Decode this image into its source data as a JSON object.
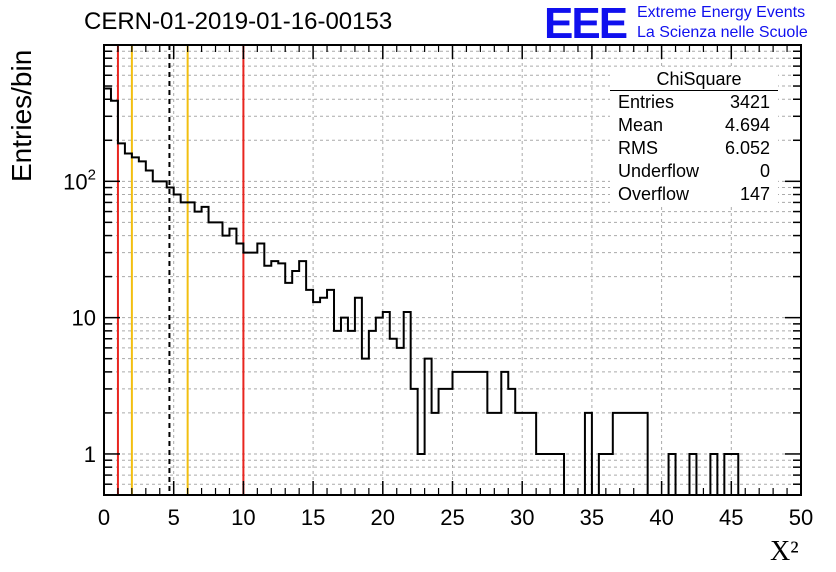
{
  "header": {
    "run_title": "CERN-01-2019-01-16-00153",
    "logo_text": "EEE",
    "logo_line1": "Extreme Energy Events",
    "logo_line2": "La Scienza nelle Scuole",
    "logo_color": "#1010ee"
  },
  "stats_box": {
    "title": "ChiSquare",
    "rows": [
      {
        "label": "Entries",
        "value": "3421"
      },
      {
        "label": "Mean",
        "value": "4.694"
      },
      {
        "label": "RMS",
        "value": "6.052"
      },
      {
        "label": "Underflow",
        "value": "0"
      },
      {
        "label": "Overflow",
        "value": "147"
      }
    ]
  },
  "chart_data": {
    "type": "histogram",
    "xlabel": "X²",
    "ylabel": "Entries/bin",
    "xlim": [
      0,
      50
    ],
    "ylim": [
      0.5,
      1000
    ],
    "yscale": "log",
    "grid": true,
    "bin_width": 0.5,
    "x_ticks": [
      "0",
      "5",
      "10",
      "15",
      "20",
      "25",
      "30",
      "35",
      "40",
      "45",
      "50"
    ],
    "y_ticks": [
      {
        "value": 1,
        "label": "1"
      },
      {
        "value": 10,
        "label": "10"
      },
      {
        "value": 100,
        "label": "10²"
      }
    ],
    "bin_counts": [
      480,
      390,
      190,
      160,
      150,
      140,
      120,
      100,
      100,
      90,
      80,
      70,
      70,
      60,
      65,
      50,
      50,
      40,
      45,
      35,
      30,
      30,
      35,
      24,
      26,
      25,
      18,
      22,
      26,
      16,
      13,
      14,
      16,
      8,
      10,
      8,
      14,
      5,
      8,
      10,
      11,
      7,
      6,
      11,
      3,
      1,
      5,
      2,
      3,
      3,
      4,
      4,
      4,
      4,
      4,
      2,
      2,
      4,
      3,
      2,
      2,
      2,
      1,
      1,
      1,
      1,
      0.3,
      0.3,
      0.3,
      2,
      0.3,
      1,
      1,
      2,
      2,
      2,
      2,
      2,
      0.3,
      0.3,
      0.3,
      1,
      0.3,
      0.3,
      1,
      0.3,
      0.3,
      1,
      0.3,
      1,
      1,
      0.3,
      0.3,
      0.3,
      0.3,
      0.3
    ],
    "vertical_lines": [
      {
        "x": 1,
        "color": "#e8251f",
        "style": "solid"
      },
      {
        "x": 2,
        "color": "#f2bf10",
        "style": "solid"
      },
      {
        "x": 4.694,
        "color": "#000000",
        "style": "dashed"
      },
      {
        "x": 6,
        "color": "#f2bf10",
        "style": "solid"
      },
      {
        "x": 10,
        "color": "#e8251f",
        "style": "solid"
      }
    ]
  }
}
